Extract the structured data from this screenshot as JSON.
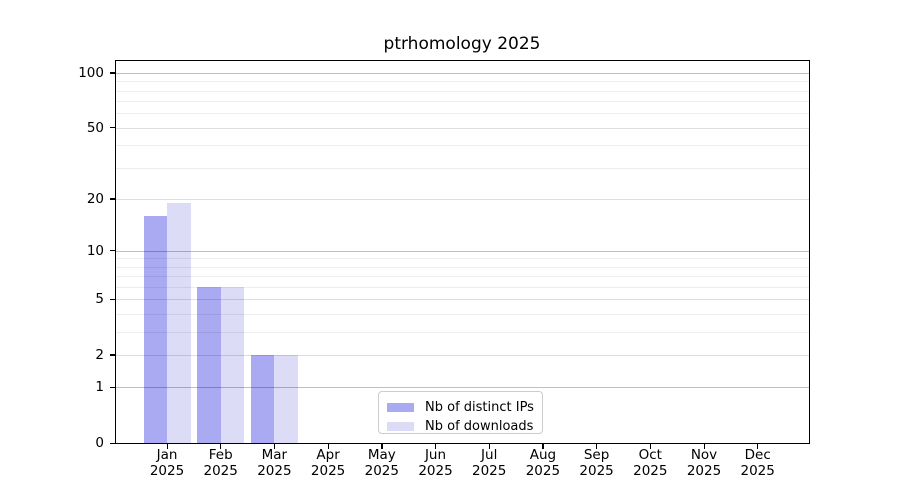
{
  "chart_data": {
    "type": "bar",
    "title": "ptrhomology 2025",
    "categories": [
      "Jan 2025",
      "Feb 2025",
      "Mar 2025",
      "Apr 2025",
      "May 2025",
      "Jun 2025",
      "Jul 2025",
      "Aug 2025",
      "Sep 2025",
      "Oct 2025",
      "Nov 2025",
      "Dec 2025"
    ],
    "series": [
      {
        "name": "Nb of distinct IPs",
        "color": "#aaaaf2",
        "values": [
          16,
          6,
          2,
          0,
          0,
          0,
          0,
          0,
          0,
          0,
          0,
          0
        ]
      },
      {
        "name": "Nb of downloads",
        "color": "#dcdcf7",
        "values": [
          19,
          6,
          2,
          0,
          0,
          0,
          0,
          0,
          0,
          0,
          0,
          0
        ]
      }
    ],
    "yscale": "log1p",
    "ylim": [
      0,
      116
    ],
    "y_ticks": [
      0,
      1,
      2,
      5,
      10,
      20,
      50,
      100
    ],
    "gridlines": {
      "strong": [
        1,
        10,
        100
      ],
      "medium": [
        2,
        5,
        20,
        50
      ],
      "faint": [
        3,
        4,
        6,
        7,
        8,
        9,
        30,
        40,
        60,
        70,
        80,
        90
      ]
    },
    "grid": true,
    "legend_position": "lower center",
    "xlabel": "",
    "ylabel": ""
  }
}
